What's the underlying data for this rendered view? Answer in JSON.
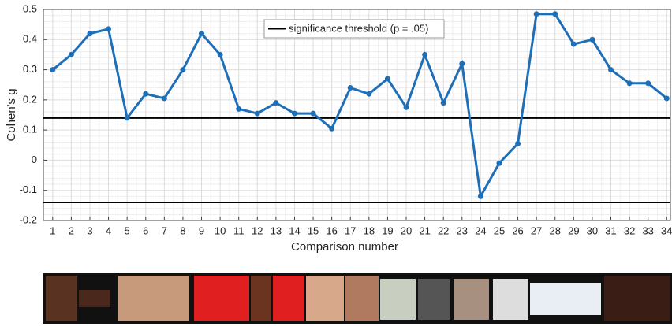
{
  "chart_data": {
    "type": "line",
    "ylabel": "Cohen's g",
    "xlabel": "Comparison number",
    "x": [
      1,
      2,
      3,
      4,
      5,
      6,
      7,
      8,
      9,
      10,
      11,
      12,
      13,
      14,
      15,
      16,
      17,
      18,
      19,
      20,
      21,
      22,
      23,
      24,
      25,
      26,
      27,
      28,
      29,
      30,
      31,
      32,
      33,
      34
    ],
    "series": [
      {
        "color": "#1f6fb8",
        "values": [
          0.3,
          0.35,
          0.42,
          0.435,
          0.14,
          0.22,
          0.205,
          0.3,
          0.42,
          0.35,
          0.17,
          0.155,
          0.19,
          0.155,
          0.155,
          0.105,
          0.24,
          0.22,
          0.27,
          0.175,
          0.35,
          0.19,
          0.32,
          -0.12,
          -0.01,
          0.055,
          0.485,
          0.485,
          0.385,
          0.4,
          0.3,
          0.255,
          0.255,
          0.205
        ]
      }
    ],
    "threshold": {
      "name": "significance threshold (p = .05)",
      "color": "#000000",
      "values": [
        0.14,
        -0.14
      ]
    },
    "xlim": [
      0.5,
      34.2
    ],
    "ylim": [
      -0.2,
      0.5
    ],
    "xticks": [
      1,
      2,
      3,
      4,
      5,
      6,
      7,
      8,
      9,
      10,
      11,
      12,
      13,
      14,
      15,
      16,
      17,
      18,
      19,
      20,
      21,
      22,
      23,
      24,
      25,
      26,
      27,
      28,
      29,
      30,
      31,
      32,
      33,
      34
    ],
    "yticks": [
      -0.2,
      -0.1,
      0,
      0.1,
      0.2,
      0.3,
      0.4,
      0.5
    ],
    "grid": true
  }
}
